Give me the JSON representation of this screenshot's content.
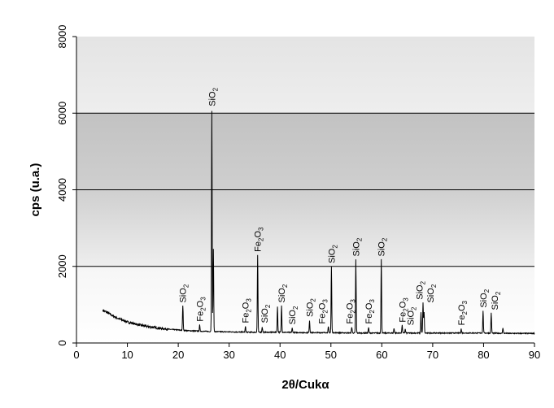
{
  "chart_data": {
    "type": "line",
    "xlabel": "2θ/Cukα",
    "ylabel": "cps (u.a.)",
    "xlim": [
      0,
      90
    ],
    "ylim": [
      0,
      8000
    ],
    "xticks": [
      "0",
      "10",
      "20",
      "30",
      "40",
      "50",
      "60",
      "70",
      "80",
      "90"
    ],
    "yticks": [
      "0",
      "2000",
      "4000",
      "6000",
      "8000"
    ],
    "grid": "horizontal major lines",
    "background": "gray gradient plot area",
    "baseline": {
      "x": [
        5.2,
        6,
        7,
        8,
        9,
        10,
        12,
        14,
        16,
        18,
        20,
        22,
        24,
        26,
        30,
        35,
        40,
        45,
        50,
        55,
        60,
        65,
        70,
        75,
        80,
        85,
        90
      ],
      "y": [
        850,
        800,
        720,
        650,
        600,
        550,
        480,
        430,
        390,
        360,
        340,
        320,
        310,
        300,
        290,
        280,
        280,
        270,
        270,
        260,
        260,
        260,
        260,
        260,
        260,
        250,
        250
      ]
    },
    "peaks": [
      {
        "x": 20.9,
        "y": 980
      },
      {
        "x": 24.2,
        "y": 470
      },
      {
        "x": 26.6,
        "y": 6050
      },
      {
        "x": 26.9,
        "y": 2450
      },
      {
        "x": 33.2,
        "y": 430
      },
      {
        "x": 35.6,
        "y": 2300
      },
      {
        "x": 36.5,
        "y": 420
      },
      {
        "x": 39.5,
        "y": 950
      },
      {
        "x": 40.3,
        "y": 980
      },
      {
        "x": 42.4,
        "y": 390
      },
      {
        "x": 45.8,
        "y": 590
      },
      {
        "x": 49.5,
        "y": 420
      },
      {
        "x": 50.1,
        "y": 2000
      },
      {
        "x": 54.1,
        "y": 420
      },
      {
        "x": 54.9,
        "y": 2180
      },
      {
        "x": 57.4,
        "y": 410
      },
      {
        "x": 59.9,
        "y": 2180
      },
      {
        "x": 62.4,
        "y": 380
      },
      {
        "x": 64.0,
        "y": 460
      },
      {
        "x": 64.6,
        "y": 360
      },
      {
        "x": 67.7,
        "y": 800
      },
      {
        "x": 68.1,
        "y": 1050
      },
      {
        "x": 68.3,
        "y": 800
      },
      {
        "x": 75.6,
        "y": 370
      },
      {
        "x": 79.9,
        "y": 840
      },
      {
        "x": 81.5,
        "y": 780
      },
      {
        "x": 83.8,
        "y": 400
      }
    ],
    "annotations": [
      {
        "text": "SiO",
        "sub": "2",
        "x": 20.9,
        "y": 1050
      },
      {
        "text": "Fe",
        "sub": "2",
        "post": "O",
        "sub2": "3",
        "x": 24.2,
        "y": 560
      },
      {
        "text": "SiO",
        "sub": "2",
        "x": 26.6,
        "y": 6180
      },
      {
        "text": "Fe",
        "sub": "2",
        "post": "O",
        "sub2": "3",
        "x": 33.2,
        "y": 520
      },
      {
        "text": "Fe",
        "sub": "2",
        "post": "O",
        "sub2": "3",
        "x": 35.6,
        "y": 2380
      },
      {
        "text": "SiO",
        "sub": "2",
        "x": 36.9,
        "y": 520
      },
      {
        "text": "SiO",
        "sub": "2",
        "x": 40.3,
        "y": 1050
      },
      {
        "text": "SiO",
        "sub": "2",
        "x": 42.4,
        "y": 480
      },
      {
        "text": "SiO",
        "sub": "2",
        "x": 45.8,
        "y": 680
      },
      {
        "text": "Fe",
        "sub": "2",
        "post": "O",
        "sub2": "3",
        "x": 48.2,
        "y": 500
      },
      {
        "text": "SiO",
        "sub": "2",
        "x": 50.1,
        "y": 2080
      },
      {
        "text": "Fe",
        "sub": "2",
        "post": "O",
        "sub2": "3",
        "x": 53.6,
        "y": 500
      },
      {
        "text": "SiO",
        "sub": "2",
        "x": 54.9,
        "y": 2260
      },
      {
        "text": "Fe",
        "sub": "2",
        "post": "O",
        "sub2": "3",
        "x": 57.4,
        "y": 500
      },
      {
        "text": "SiO",
        "sub": "2",
        "x": 59.9,
        "y": 2260
      },
      {
        "text": "Fe",
        "sub": "2",
        "post": "O",
        "sub2": "3",
        "x": 64.0,
        "y": 540
      },
      {
        "text": "SiO",
        "sub": "2",
        "x": 65.6,
        "y": 460
      },
      {
        "text": "SiO",
        "sub": "2",
        "x": 67.4,
        "y": 1130
      },
      {
        "text": "SiO",
        "sub": "2",
        "x": 69.5,
        "y": 1050
      },
      {
        "text": "Fe",
        "sub": "2",
        "post": "O",
        "sub2": "3",
        "x": 75.6,
        "y": 460
      },
      {
        "text": "SiO",
        "sub": "2",
        "x": 79.9,
        "y": 920
      },
      {
        "text": "SiO",
        "sub": "2",
        "x": 82.2,
        "y": 860
      }
    ]
  }
}
